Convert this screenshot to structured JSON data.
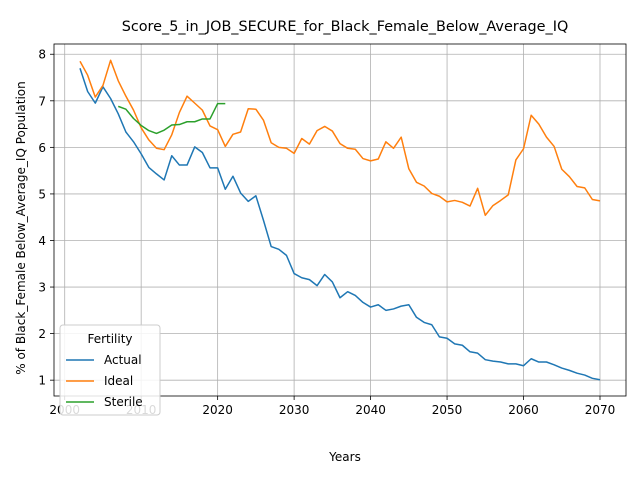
{
  "chart_data": {
    "type": "line",
    "title": "Score_5_in_JOB_SECURE_for_Black_Female_Below_Average_IQ",
    "xlabel": "Years",
    "ylabel": "% of Black_Female Below_Average_IQ Population",
    "xlim": [
      1998.6,
      2073.4
    ],
    "ylim": [
      0.66,
      8.22
    ],
    "xticks": [
      2000,
      2010,
      2020,
      2030,
      2040,
      2050,
      2060,
      2070
    ],
    "yticks": [
      1,
      2,
      3,
      4,
      5,
      6,
      7,
      8
    ],
    "grid": true,
    "legend": {
      "title": "Fertility",
      "position": "lower-left"
    },
    "series": [
      {
        "name": "Actual",
        "color": "#1f77b4",
        "x": [
          2002,
          2003,
          2004,
          2005,
          2006,
          2007,
          2008,
          2009,
          2010,
          2011,
          2012,
          2013,
          2014,
          2015,
          2016,
          2017,
          2018,
          2019,
          2020,
          2021,
          2022,
          2023,
          2024,
          2025,
          2026,
          2027,
          2028,
          2029,
          2030,
          2031,
          2032,
          2033,
          2034,
          2035,
          2036,
          2037,
          2038,
          2039,
          2040,
          2041,
          2042,
          2043,
          2044,
          2045,
          2046,
          2047,
          2048,
          2049,
          2050,
          2051,
          2052,
          2053,
          2054,
          2055,
          2056,
          2057,
          2058,
          2059,
          2060,
          2061,
          2062,
          2063,
          2064,
          2065,
          2066,
          2067,
          2068,
          2069,
          2070
        ],
        "y": [
          7.7,
          7.2,
          6.95,
          7.3,
          7.05,
          6.72,
          6.33,
          6.12,
          5.86,
          5.57,
          5.43,
          5.3,
          5.82,
          5.62,
          5.62,
          6.01,
          5.89,
          5.56,
          5.56,
          5.1,
          5.38,
          5.02,
          4.84,
          4.96,
          4.43,
          3.87,
          3.81,
          3.68,
          3.29,
          3.2,
          3.16,
          3.03,
          3.27,
          3.11,
          2.77,
          2.9,
          2.82,
          2.67,
          2.57,
          2.62,
          2.5,
          2.53,
          2.59,
          2.62,
          2.35,
          2.24,
          2.19,
          1.93,
          1.9,
          1.78,
          1.75,
          1.61,
          1.58,
          1.44,
          1.41,
          1.39,
          1.35,
          1.35,
          1.31,
          1.46,
          1.39,
          1.39,
          1.33,
          1.26,
          1.21,
          1.15,
          1.11,
          1.04,
          1.01
        ]
      },
      {
        "name": "Ideal",
        "color": "#ff7f0e",
        "x": [
          2002,
          2003,
          2004,
          2005,
          2006,
          2007,
          2008,
          2009,
          2010,
          2011,
          2012,
          2013,
          2014,
          2015,
          2016,
          2017,
          2018,
          2019,
          2020,
          2021,
          2022,
          2023,
          2024,
          2025,
          2026,
          2027,
          2028,
          2029,
          2030,
          2031,
          2032,
          2033,
          2034,
          2035,
          2036,
          2037,
          2038,
          2039,
          2040,
          2041,
          2042,
          2043,
          2044,
          2045,
          2046,
          2047,
          2048,
          2049,
          2050,
          2051,
          2052,
          2053,
          2054,
          2055,
          2056,
          2057,
          2058,
          2059,
          2060,
          2061,
          2062,
          2063,
          2064,
          2065,
          2066,
          2067,
          2068,
          2069,
          2070
        ],
        "y": [
          7.85,
          7.55,
          7.08,
          7.33,
          7.87,
          7.43,
          7.1,
          6.8,
          6.42,
          6.16,
          5.98,
          5.95,
          6.27,
          6.75,
          7.1,
          6.95,
          6.8,
          6.46,
          6.38,
          6.02,
          6.28,
          6.33,
          6.83,
          6.82,
          6.58,
          6.1,
          6.0,
          5.98,
          5.87,
          6.19,
          6.07,
          6.36,
          6.45,
          6.35,
          6.08,
          5.98,
          5.96,
          5.76,
          5.71,
          5.75,
          6.12,
          5.98,
          6.22,
          5.54,
          5.25,
          5.17,
          5.01,
          4.95,
          4.83,
          4.86,
          4.82,
          4.74,
          5.12,
          4.54,
          4.75,
          4.86,
          4.98,
          5.73,
          5.97,
          6.69,
          6.5,
          6.22,
          6.02,
          5.53,
          5.37,
          5.16,
          5.13,
          4.88,
          4.85
        ]
      },
      {
        "name": "Sterile",
        "color": "#2ca02c",
        "x": [
          2007,
          2008,
          2009,
          2010,
          2011,
          2012,
          2013,
          2014,
          2015,
          2016,
          2017,
          2018,
          2019,
          2020,
          2021
        ],
        "y": [
          6.88,
          6.82,
          6.62,
          6.47,
          6.36,
          6.3,
          6.37,
          6.48,
          6.49,
          6.55,
          6.55,
          6.61,
          6.61,
          6.94,
          6.94
        ]
      }
    ]
  }
}
